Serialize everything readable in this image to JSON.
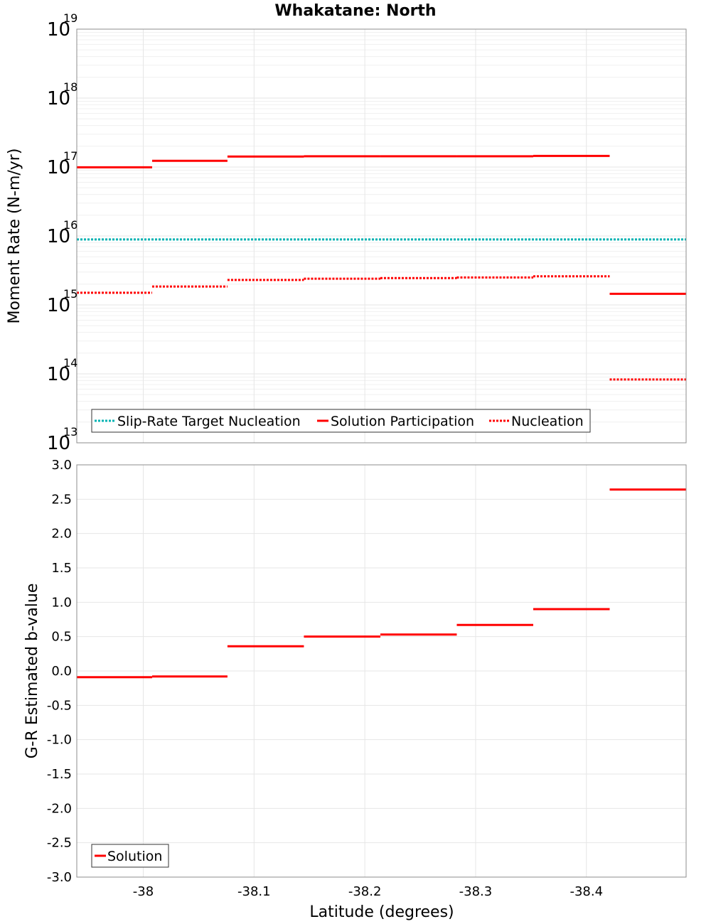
{
  "title": "Whakatane: North",
  "colors": {
    "solution": "#ff0000",
    "target": "#00b3b3",
    "grid": "#e6e6e6"
  },
  "chart_data": [
    {
      "type": "line",
      "name": "moment-rate",
      "ylabel": "Moment Rate (N-m/yr)",
      "yscale": "log",
      "ylim": [
        10000000000000.0,
        1e+19
      ],
      "xlim": [
        -37.94,
        -38.49
      ],
      "x_reversed": true,
      "grid": true,
      "legend_position": "bottom-left",
      "yticks": [
        {
          "base": "10",
          "exp": "13",
          "value": 10000000000000.0
        },
        {
          "base": "10",
          "exp": "14",
          "value": 100000000000000.0
        },
        {
          "base": "10",
          "exp": "15",
          "value": 1000000000000000.0
        },
        {
          "base": "10",
          "exp": "16",
          "value": 1e+16
        },
        {
          "base": "10",
          "exp": "17",
          "value": 1e+17
        },
        {
          "base": "10",
          "exp": "18",
          "value": 1e+18
        },
        {
          "base": "10",
          "exp": "19",
          "value": 1e+19
        }
      ],
      "series": [
        {
          "name": "Slip-Rate Target Nucleation",
          "style": "dotted",
          "color": "#00b3b3",
          "segments": [
            {
              "x": [
                -37.94,
                -38.49
              ],
              "y": 8900000000000000.0
            }
          ]
        },
        {
          "name": "Solution Participation",
          "style": "solid",
          "color": "#ff0000",
          "segments": [
            {
              "x": [
                -37.94,
                -38.008
              ],
              "y": 9.9e+16
            },
            {
              "x": [
                -38.008,
                -38.076
              ],
              "y": 1.23e+17
            },
            {
              "x": [
                -38.076,
                -38.145
              ],
              "y": 1.42e+17
            },
            {
              "x": [
                -38.145,
                -38.214
              ],
              "y": 1.43e+17
            },
            {
              "x": [
                -38.214,
                -38.283
              ],
              "y": 1.43e+17
            },
            {
              "x": [
                -38.283,
                -38.352
              ],
              "y": 1.43e+17
            },
            {
              "x": [
                -38.352,
                -38.421
              ],
              "y": 1.45e+17
            },
            {
              "x": [
                -38.421,
                -38.49
              ],
              "y": 1450000000000000.0
            }
          ]
        },
        {
          "name": "Nucleation",
          "style": "dotted",
          "color": "#ff0000",
          "segments": [
            {
              "x": [
                -37.94,
                -38.008
              ],
              "y": 1500000000000000.0
            },
            {
              "x": [
                -38.008,
                -38.076
              ],
              "y": 1850000000000000.0
            },
            {
              "x": [
                -38.076,
                -38.145
              ],
              "y": 2300000000000000.0
            },
            {
              "x": [
                -38.145,
                -38.214
              ],
              "y": 2400000000000000.0
            },
            {
              "x": [
                -38.214,
                -38.283
              ],
              "y": 2450000000000000.0
            },
            {
              "x": [
                -38.283,
                -38.352
              ],
              "y": 2500000000000000.0
            },
            {
              "x": [
                -38.352,
                -38.421
              ],
              "y": 2600000000000000.0
            },
            {
              "x": [
                -38.421,
                -38.49
              ],
              "y": 83000000000000.0
            }
          ]
        }
      ]
    },
    {
      "type": "line",
      "name": "b-value",
      "ylabel": "G-R Estimated b-value",
      "xlabel": "Latitude (degrees)",
      "ylim": [
        -3.0,
        3.0
      ],
      "xlim": [
        -37.94,
        -38.49
      ],
      "x_reversed": true,
      "grid": true,
      "legend_position": "bottom-left",
      "xticks": [
        "-38",
        "-38.1",
        "-38.2",
        "-38.3",
        "-38.4"
      ],
      "xtick_values": [
        -38.0,
        -38.1,
        -38.2,
        -38.3,
        -38.4
      ],
      "yticks": [
        "3.0",
        "2.5",
        "2.0",
        "1.5",
        "1.0",
        "0.5",
        "0.0",
        "-0.5",
        "-1.0",
        "-1.5",
        "-2.0",
        "-2.5",
        "-3.0"
      ],
      "ytick_values": [
        3.0,
        2.5,
        2.0,
        1.5,
        1.0,
        0.5,
        0.0,
        -0.5,
        -1.0,
        -1.5,
        -2.0,
        -2.5,
        -3.0
      ],
      "series": [
        {
          "name": "Solution",
          "style": "solid",
          "color": "#ff0000",
          "segments": [
            {
              "x": [
                -37.94,
                -38.008
              ],
              "y": -0.09
            },
            {
              "x": [
                -38.008,
                -38.076
              ],
              "y": -0.08
            },
            {
              "x": [
                -38.076,
                -38.145
              ],
              "y": 0.36
            },
            {
              "x": [
                -38.145,
                -38.214
              ],
              "y": 0.5
            },
            {
              "x": [
                -38.214,
                -38.283
              ],
              "y": 0.53
            },
            {
              "x": [
                -38.283,
                -38.352
              ],
              "y": 0.67
            },
            {
              "x": [
                -38.352,
                -38.421
              ],
              "y": 0.9
            },
            {
              "x": [
                -38.421,
                -38.49
              ],
              "y": 2.64
            }
          ]
        }
      ]
    }
  ]
}
